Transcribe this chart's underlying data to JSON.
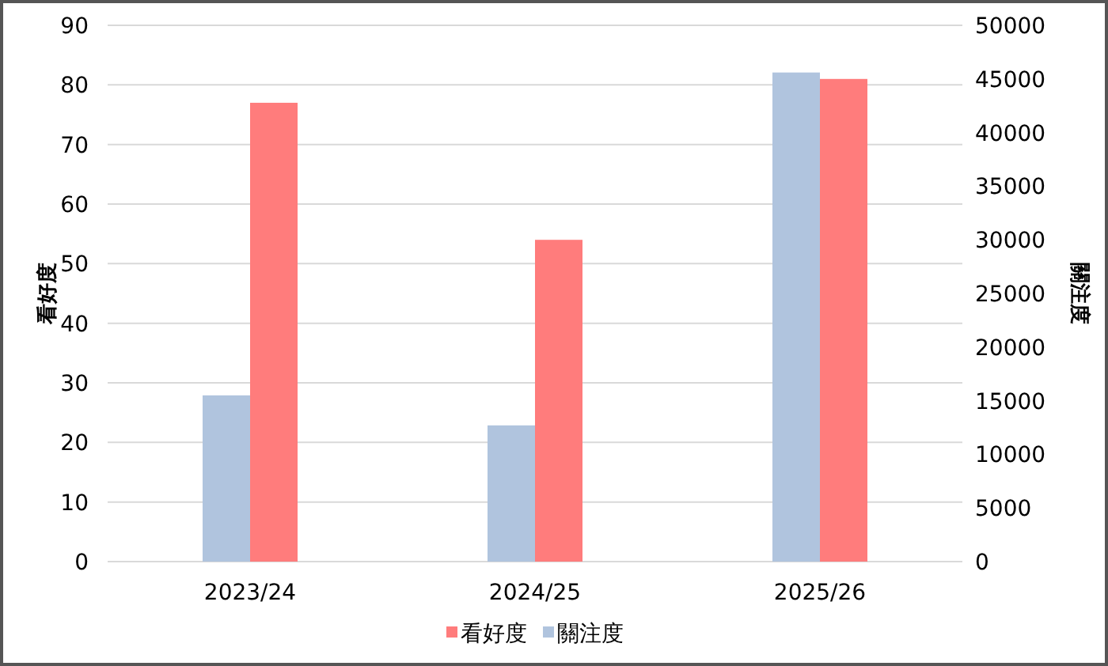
{
  "chart_data": {
    "type": "bar",
    "categories": [
      "2023/24",
      "2024/25",
      "2025/26"
    ],
    "series": [
      {
        "name": "看好度",
        "color": "#ff7c7c",
        "values": [
          77,
          54,
          81
        ]
      },
      {
        "name": "關注度",
        "color": "#b0c4de",
        "axis": "y2",
        "values": [
          15500,
          12700,
          45600
        ]
      }
    ],
    "ylabel": "看好度",
    "y2label": "關注度",
    "ylim": [
      0,
      90
    ],
    "yticks": [
      0,
      10,
      20,
      30,
      40,
      50,
      60,
      70,
      80,
      90
    ],
    "y2lim": [
      0,
      50000
    ],
    "y2ticks": [
      0,
      5000,
      10000,
      15000,
      20000,
      25000,
      30000,
      35000,
      40000,
      45000,
      50000
    ],
    "grid": "y",
    "legend": "bottom"
  }
}
